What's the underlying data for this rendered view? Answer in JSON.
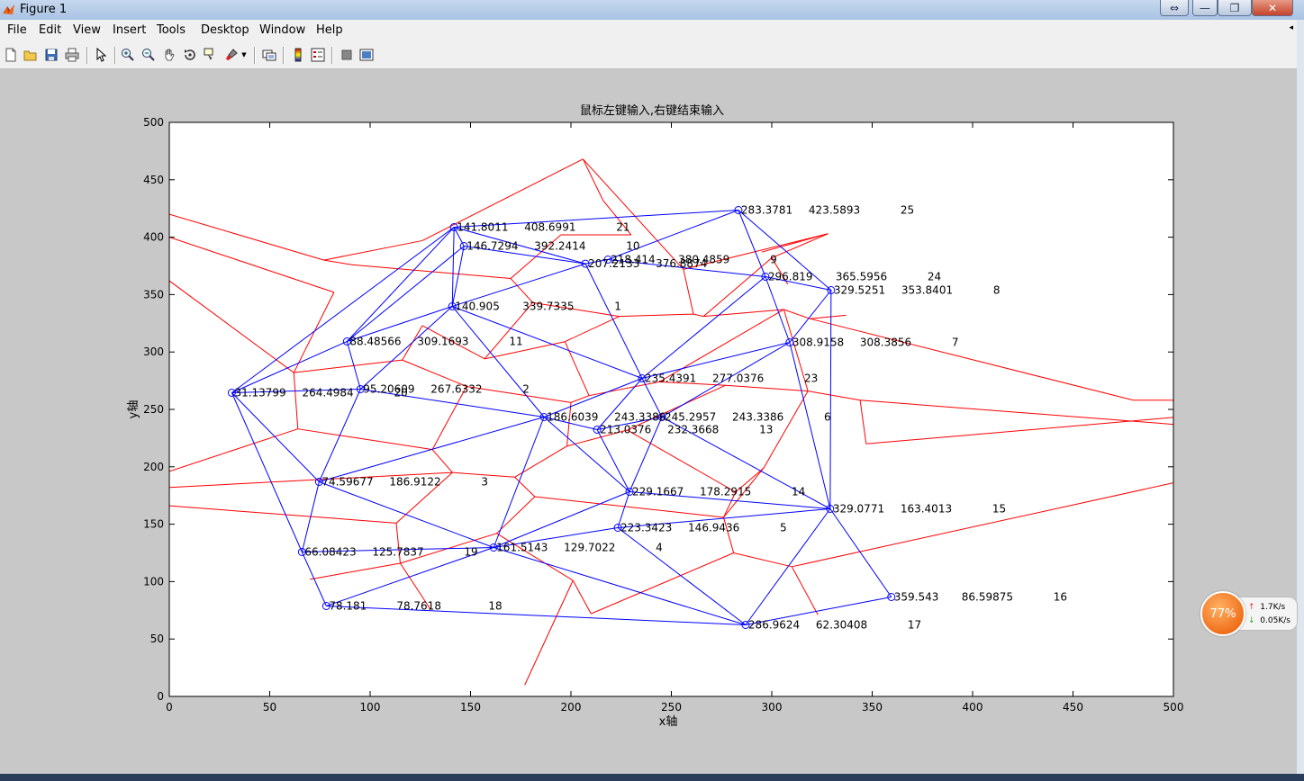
{
  "window": {
    "title": "Figure 1",
    "buttons": [
      "⇔",
      "—",
      "❐",
      "✕"
    ]
  },
  "menu": [
    "File",
    "Edit",
    "View",
    "Insert",
    "Tools",
    "Desktop",
    "Window",
    "Help"
  ],
  "toolbar_icons": [
    "new-figure-icon",
    "open-file-icon",
    "save-icon",
    "print-icon",
    "pointer-icon",
    "zoom-in-icon",
    "zoom-out-icon",
    "pan-icon",
    "rotate-icon",
    "data-cursor-icon",
    "brush-icon",
    "link-plot-icon",
    "colorbar-icon",
    "legend-icon",
    "hide-plot-tools-icon",
    "show-plot-tools-icon"
  ],
  "plot": {
    "title": "鼠标左键输入,右键结束输入",
    "xlabel": "x轴",
    "ylabel": "y轴"
  },
  "chart_data": {
    "type": "scatter",
    "title": "鼠标左键输入,右键结束输入",
    "xlabel": "x轴",
    "ylabel": "y轴",
    "xlim": [
      0,
      500
    ],
    "ylim": [
      0,
      500
    ],
    "xticks": [
      0,
      50,
      100,
      150,
      200,
      250,
      300,
      350,
      400,
      450,
      500
    ],
    "yticks": [
      0,
      50,
      100,
      150,
      200,
      250,
      300,
      350,
      400,
      450,
      500
    ],
    "grid": false,
    "colors": {
      "delaunay": "#0000ff",
      "voronoi": "#ff0000"
    },
    "points": [
      {
        "id": "p1",
        "x": 141.8011,
        "y": 408.6991,
        "label": "141.8011",
        "v": "408.6991",
        "n": "21"
      },
      {
        "id": "p2",
        "x": 146.7294,
        "y": 392.2414,
        "label": "146.7294",
        "v": "392.2414",
        "n": "10"
      },
      {
        "id": "p3",
        "x": 218.414,
        "y": 380.4859,
        "label": "218.414",
        "v": "380.4859",
        "n": "9"
      },
      {
        "id": "p4",
        "x": 207.2133,
        "y": 376.8874,
        "label": "207.2133",
        "v": "376.8874",
        "n": ""
      },
      {
        "id": "p5",
        "x": 283.3781,
        "y": 423.5893,
        "label": "283.3781",
        "v": "423.5893",
        "n": "25"
      },
      {
        "id": "p6",
        "x": 296.819,
        "y": 365.5956,
        "label": "296.819",
        "v": "365.5956",
        "n": "24"
      },
      {
        "id": "p7",
        "x": 329.5251,
        "y": 353.8401,
        "label": "329.5251",
        "v": "353.8401",
        "n": "8"
      },
      {
        "id": "p8",
        "x": 140.905,
        "y": 339.7335,
        "label": "140.905",
        "v": "339.7335",
        "n": "1"
      },
      {
        "id": "p9",
        "x": 88.48566,
        "y": 309.1693,
        "label": "88.48566",
        "v": "309.1693",
        "n": "11"
      },
      {
        "id": "p10",
        "x": 308.9158,
        "y": 308.3856,
        "label": "308.9158",
        "v": "308.3856",
        "n": "7"
      },
      {
        "id": "p11",
        "x": 31.13799,
        "y": 264.4984,
        "label": "31.13799",
        "v": "264.4984",
        "n": "20"
      },
      {
        "id": "p12",
        "x": 95.20609,
        "y": 267.6332,
        "label": "95.20609",
        "v": "267.6332",
        "n": "2"
      },
      {
        "id": "p13",
        "x": 235.4391,
        "y": 277.0376,
        "label": "235.4391",
        "v": "277.0376",
        "n": "23"
      },
      {
        "id": "p14",
        "x": 186.6039,
        "y": 243.3386,
        "label": "186.6039",
        "v": "243.3386",
        "n": ""
      },
      {
        "id": "p15",
        "x": 245.2957,
        "y": 243.3386,
        "label": "245.2957",
        "v": "243.3386",
        "n": "6"
      },
      {
        "id": "p16",
        "x": 213.0376,
        "y": 232.3668,
        "label": "213.0376",
        "v": "232.3668",
        "n": "13"
      },
      {
        "id": "p17",
        "x": 74.59677,
        "y": 186.9122,
        "label": "74.59677",
        "v": "186.9122",
        "n": "3"
      },
      {
        "id": "p18",
        "x": 229.1667,
        "y": 178.2915,
        "label": "229.1667",
        "v": "178.2915",
        "n": "14"
      },
      {
        "id": "p19",
        "x": 329.0771,
        "y": 163.4013,
        "label": "329.0771",
        "v": "163.4013",
        "n": "15"
      },
      {
        "id": "p20",
        "x": 223.3423,
        "y": 146.9436,
        "label": "223.3423",
        "v": "146.9436",
        "n": "5"
      },
      {
        "id": "p21",
        "x": 66.08423,
        "y": 125.7837,
        "label": "66.08423",
        "v": "125.7837",
        "n": "19"
      },
      {
        "id": "p22",
        "x": 161.5143,
        "y": 129.7022,
        "label": "161.5143",
        "v": "129.7022",
        "n": "4"
      },
      {
        "id": "p23",
        "x": 359.543,
        "y": 86.59875,
        "label": "359.543",
        "v": "86.59875",
        "n": "16"
      },
      {
        "id": "p24",
        "x": 78.181,
        "y": 78.7618,
        "label": "78.181",
        "v": "78.7618",
        "n": "18"
      },
      {
        "id": "p25",
        "x": 286.9624,
        "y": 62.30408,
        "label": "286.9624",
        "v": "62.30408",
        "n": "17"
      }
    ],
    "delaunay_edges": [
      [
        "p1",
        "p2"
      ],
      [
        "p1",
        "p4"
      ],
      [
        "p1",
        "p5"
      ],
      [
        "p1",
        "p9"
      ],
      [
        "p1",
        "p11"
      ],
      [
        "p1",
        "p8"
      ],
      [
        "p2",
        "p4"
      ],
      [
        "p2",
        "p8"
      ],
      [
        "p2",
        "p9"
      ],
      [
        "p3",
        "p5"
      ],
      [
        "p3",
        "p4"
      ],
      [
        "p3",
        "p6"
      ],
      [
        "p4",
        "p8"
      ],
      [
        "p4",
        "p13"
      ],
      [
        "p5",
        "p6"
      ],
      [
        "p5",
        "p7"
      ],
      [
        "p6",
        "p7"
      ],
      [
        "p6",
        "p13"
      ],
      [
        "p6",
        "p10"
      ],
      [
        "p7",
        "p10"
      ],
      [
        "p7",
        "p19"
      ],
      [
        "p8",
        "p9"
      ],
      [
        "p8",
        "p12"
      ],
      [
        "p8",
        "p13"
      ],
      [
        "p8",
        "p14"
      ],
      [
        "p9",
        "p11"
      ],
      [
        "p9",
        "p12"
      ],
      [
        "p10",
        "p13"
      ],
      [
        "p10",
        "p15"
      ],
      [
        "p10",
        "p19"
      ],
      [
        "p11",
        "p12"
      ],
      [
        "p11",
        "p17"
      ],
      [
        "p11",
        "p21"
      ],
      [
        "p12",
        "p14"
      ],
      [
        "p12",
        "p17"
      ],
      [
        "p13",
        "p14"
      ],
      [
        "p13",
        "p15"
      ],
      [
        "p13",
        "p16"
      ],
      [
        "p14",
        "p16"
      ],
      [
        "p14",
        "p17"
      ],
      [
        "p14",
        "p18"
      ],
      [
        "p14",
        "p22"
      ],
      [
        "p15",
        "p16"
      ],
      [
        "p15",
        "p18"
      ],
      [
        "p15",
        "p19"
      ],
      [
        "p16",
        "p18"
      ],
      [
        "p17",
        "p21"
      ],
      [
        "p17",
        "p22"
      ],
      [
        "p18",
        "p20"
      ],
      [
        "p18",
        "p22"
      ],
      [
        "p18",
        "p19"
      ],
      [
        "p19",
        "p20"
      ],
      [
        "p19",
        "p23"
      ],
      [
        "p19",
        "p25"
      ],
      [
        "p20",
        "p22"
      ],
      [
        "p20",
        "p25"
      ],
      [
        "p21",
        "p22"
      ],
      [
        "p21",
        "p24"
      ],
      [
        "p22",
        "p24"
      ],
      [
        "p22",
        "p25"
      ],
      [
        "p23",
        "p25"
      ],
      [
        "p24",
        "p25"
      ]
    ],
    "voronoi_edges": [
      [
        [
          0,
          420
        ],
        [
          77,
          380
        ]
      ],
      [
        [
          77,
          380
        ],
        [
          91,
          376
        ]
      ],
      [
        [
          0,
          400
        ],
        [
          82,
          352
        ]
      ],
      [
        [
          0,
          362
        ],
        [
          62,
          282
        ]
      ],
      [
        [
          91,
          376
        ],
        [
          170,
          364
        ]
      ],
      [
        [
          77,
          380
        ],
        [
          126,
          397
        ]
      ],
      [
        [
          126,
          397
        ],
        [
          206,
          468
        ]
      ],
      [
        [
          206,
          468
        ],
        [
          216,
          432
        ]
      ],
      [
        [
          206,
          468
        ],
        [
          256,
          372
        ]
      ],
      [
        [
          216,
          432
        ],
        [
          230,
          402
        ]
      ],
      [
        [
          170,
          364
        ],
        [
          195,
          402
        ]
      ],
      [
        [
          195,
          402
        ],
        [
          230,
          402
        ]
      ],
      [
        [
          170,
          364
        ],
        [
          181,
          343
        ]
      ],
      [
        [
          181,
          343
        ],
        [
          157,
          294
        ]
      ],
      [
        [
          181,
          343
        ],
        [
          224,
          331
        ]
      ],
      [
        [
          224,
          331
        ],
        [
          261,
          333
        ]
      ],
      [
        [
          256,
          372
        ],
        [
          261,
          333
        ]
      ],
      [
        [
          256,
          372
        ],
        [
          328,
          403
        ]
      ],
      [
        [
          295,
          387
        ],
        [
          328,
          403
        ]
      ],
      [
        [
          328,
          403
        ],
        [
          300,
          382
        ]
      ],
      [
        [
          300,
          382
        ],
        [
          266,
          331
        ]
      ],
      [
        [
          266,
          331
        ],
        [
          261,
          333
        ]
      ],
      [
        [
          266,
          331
        ],
        [
          306,
          337
        ]
      ],
      [
        [
          306,
          337
        ],
        [
          319,
          329
        ]
      ],
      [
        [
          319,
          329
        ],
        [
          480,
          258
        ]
      ],
      [
        [
          480,
          258
        ],
        [
          500,
          258
        ]
      ],
      [
        [
          319,
          329
        ],
        [
          337,
          332
        ]
      ],
      [
        [
          300,
          382
        ],
        [
          308,
          359
        ]
      ],
      [
        [
          82,
          352
        ],
        [
          62,
          282
        ]
      ],
      [
        [
          62,
          282
        ],
        [
          116,
          293
        ]
      ],
      [
        [
          116,
          293
        ],
        [
          126,
          323
        ]
      ],
      [
        [
          126,
          323
        ],
        [
          157,
          294
        ]
      ],
      [
        [
          157,
          294
        ],
        [
          197,
          309
        ]
      ],
      [
        [
          197,
          309
        ],
        [
          224,
          331
        ]
      ],
      [
        [
          197,
          309
        ],
        [
          209,
          262
        ]
      ],
      [
        [
          209,
          262
        ],
        [
          244,
          274
        ]
      ],
      [
        [
          244,
          274
        ],
        [
          306,
          337
        ]
      ],
      [
        [
          244,
          274
        ],
        [
          277,
          271
        ]
      ],
      [
        [
          209,
          262
        ],
        [
          200,
          256
        ]
      ],
      [
        [
          62,
          282
        ],
        [
          64,
          233
        ]
      ],
      [
        [
          64,
          233
        ],
        [
          0,
          196
        ]
      ],
      [
        [
          64,
          233
        ],
        [
          131,
          215
        ]
      ],
      [
        [
          131,
          215
        ],
        [
          148,
          270
        ]
      ],
      [
        [
          148,
          270
        ],
        [
          116,
          293
        ]
      ],
      [
        [
          148,
          270
        ],
        [
          200,
          256
        ]
      ],
      [
        [
          131,
          215
        ],
        [
          141,
          195
        ]
      ],
      [
        [
          141,
          195
        ],
        [
          172,
          191
        ]
      ],
      [
        [
          172,
          191
        ],
        [
          198,
          218
        ]
      ],
      [
        [
          198,
          218
        ],
        [
          200,
          256
        ]
      ],
      [
        [
          0,
          182
        ],
        [
          141,
          195
        ]
      ],
      [
        [
          198,
          218
        ],
        [
          228,
          232
        ]
      ],
      [
        [
          228,
          232
        ],
        [
          277,
          271
        ]
      ],
      [
        [
          277,
          271
        ],
        [
          318,
          266
        ]
      ],
      [
        [
          318,
          266
        ],
        [
          306,
          337
        ]
      ],
      [
        [
          318,
          266
        ],
        [
          344,
          258
        ]
      ],
      [
        [
          344,
          258
        ],
        [
          500,
          237
        ]
      ],
      [
        [
          344,
          258
        ],
        [
          347,
          220
        ]
      ],
      [
        [
          347,
          220
        ],
        [
          500,
          243
        ]
      ],
      [
        [
          172,
          191
        ],
        [
          182,
          174
        ]
      ],
      [
        [
          182,
          174
        ],
        [
          276,
          156
        ]
      ],
      [
        [
          276,
          156
        ],
        [
          282,
          178
        ]
      ],
      [
        [
          282,
          178
        ],
        [
          228,
          232
        ]
      ],
      [
        [
          282,
          178
        ],
        [
          296,
          199
        ]
      ],
      [
        [
          296,
          199
        ],
        [
          318,
          266
        ]
      ],
      [
        [
          0,
          166
        ],
        [
          113,
          151
        ]
      ],
      [
        [
          113,
          151
        ],
        [
          141,
          195
        ]
      ],
      [
        [
          113,
          151
        ],
        [
          115,
          116
        ]
      ],
      [
        [
          115,
          116
        ],
        [
          70,
          102
        ]
      ],
      [
        [
          115,
          116
        ],
        [
          163,
          142
        ]
      ],
      [
        [
          163,
          142
        ],
        [
          182,
          174
        ]
      ],
      [
        [
          163,
          142
        ],
        [
          201,
          101
        ]
      ],
      [
        [
          201,
          101
        ],
        [
          210,
          72
        ]
      ],
      [
        [
          210,
          72
        ],
        [
          281,
          125
        ]
      ],
      [
        [
          281,
          125
        ],
        [
          276,
          156
        ]
      ],
      [
        [
          281,
          125
        ],
        [
          310,
          113
        ]
      ],
      [
        [
          310,
          113
        ],
        [
          500,
          186
        ]
      ],
      [
        [
          310,
          113
        ],
        [
          323,
          71
        ]
      ],
      [
        [
          201,
          101
        ],
        [
          177,
          10
        ]
      ],
      [
        [
          115,
          116
        ],
        [
          130,
          76
        ]
      ],
      [
        [
          276,
          156
        ],
        [
          296,
          199
        ]
      ]
    ]
  },
  "taskbar_widget": {
    "percent": "77%",
    "upload": "1.7K/s",
    "download": "0.05K/s"
  }
}
